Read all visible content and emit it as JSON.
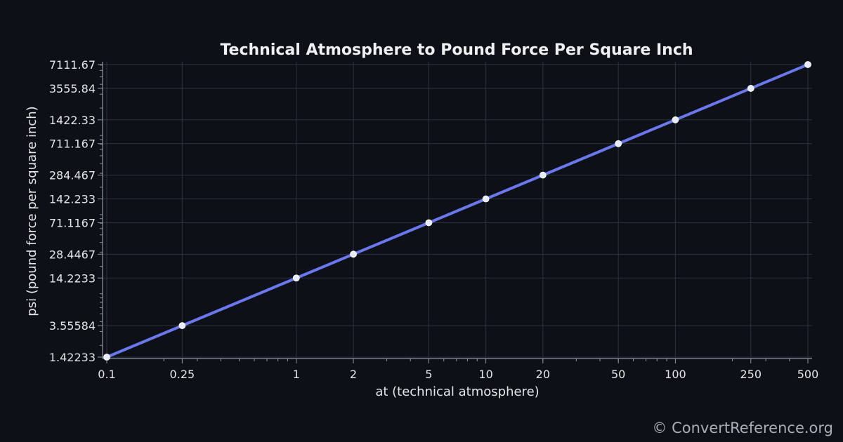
{
  "chart_data": {
    "type": "line",
    "title": "Technical Atmosphere to Pound Force Per Square Inch",
    "xlabel": "at (technical atmosphere)",
    "ylabel": "psi (pound force per square inch)",
    "x_scale": "log",
    "y_scale": "log",
    "xlim": [
      0.1,
      500
    ],
    "ylim": [
      1.42233,
      7111.67
    ],
    "grid": true,
    "line_color": "#6a78ee",
    "marker_color": "#e8ecff",
    "x_ticks": [
      0.1,
      0.25,
      1,
      2,
      5,
      10,
      20,
      50,
      100,
      250,
      500
    ],
    "x_tick_labels": [
      "0.1",
      "0.25",
      "1",
      "2",
      "5",
      "10",
      "20",
      "50",
      "100",
      "250",
      "500"
    ],
    "y_ticks": [
      1.42233,
      3.55584,
      14.2233,
      28.4467,
      71.1167,
      142.233,
      284.467,
      711.167,
      1422.33,
      3555.84,
      7111.67
    ],
    "y_tick_labels": [
      "1.42233",
      "3.55584",
      "14.2233",
      "28.4467",
      "71.1167",
      "142.233",
      "284.467",
      "711.167",
      "1422.33",
      "3555.84",
      "7111.67"
    ],
    "series": [
      {
        "x": [
          0.1,
          0.25,
          1,
          2,
          5,
          10,
          20,
          50,
          100,
          250,
          500
        ],
        "y": [
          1.42233,
          3.55584,
          14.2233,
          28.4467,
          71.1167,
          142.233,
          284.467,
          711.167,
          1422.33,
          3555.84,
          7111.67
        ]
      }
    ]
  },
  "watermark": "© ConvertReference.org"
}
